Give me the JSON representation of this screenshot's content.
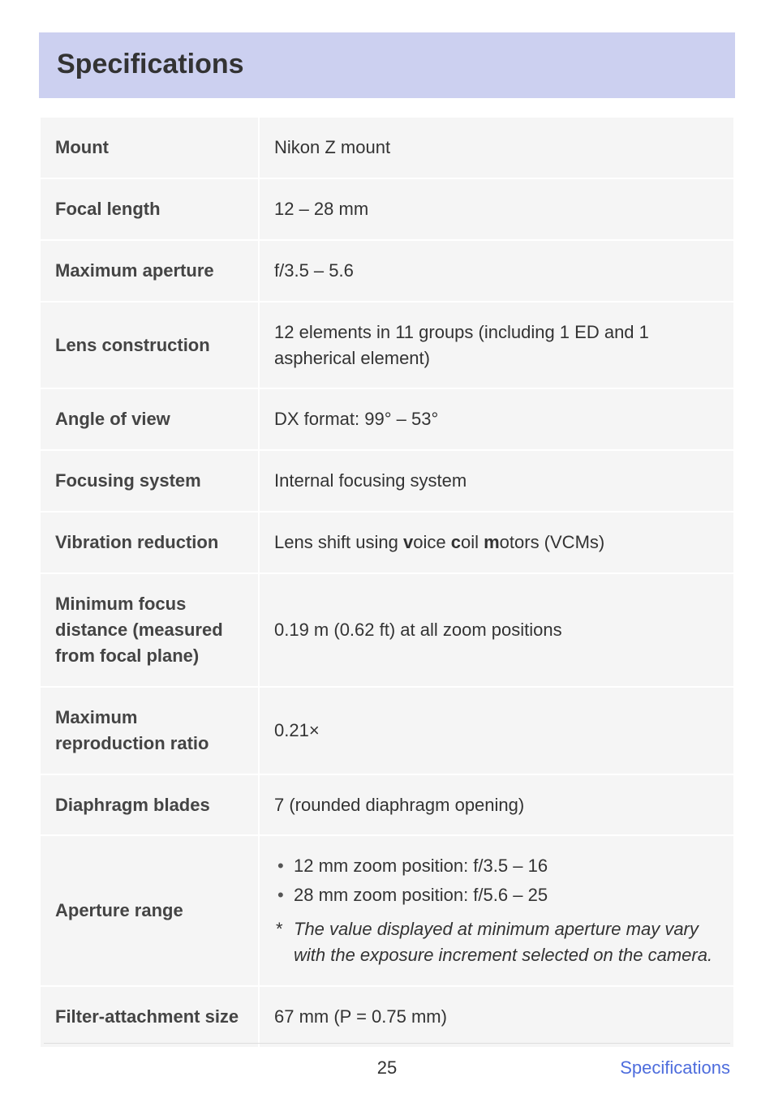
{
  "header": {
    "title": "Specifications"
  },
  "table": {
    "rows": [
      {
        "label": "Mount",
        "value": "Nikon Z mount"
      },
      {
        "label": "Focal length",
        "value": "12 – 28 mm"
      },
      {
        "label": "Maximum aperture",
        "value": "f/3.5 – 5.6"
      },
      {
        "label": "Lens construction",
        "value": "12 elements in 11 groups (including 1 ED and 1 aspherical element)"
      },
      {
        "label": "Angle of view",
        "value": "DX format: 99° – 53°"
      },
      {
        "label": "Focusing system",
        "value": "Internal focusing system"
      },
      {
        "label": "Vibration reduction",
        "value_html": true,
        "prefix": "Lens shift using ",
        "b1": "v",
        "m1": "oice ",
        "b2": "c",
        "m2": "oil ",
        "b3": "m",
        "m3": "otors (VCMs)"
      },
      {
        "label": "Minimum focus distance (measured from focal plane)",
        "value": "0.19 m (0.62 ft) at all zoom positions"
      },
      {
        "label": "Maximum reproduction ratio",
        "value": "0.21×"
      },
      {
        "label": "Diaphragm blades",
        "value": "7 (rounded diaphragm opening)"
      },
      {
        "label": "Aperture range",
        "complex": true,
        "bullets": [
          "12 mm zoom position: f/3.5 – 16",
          "28 mm zoom position: f/5.6 – 25"
        ],
        "footnote": "The value displayed at minimum aperture may vary with the exposure increment selected on the camera."
      },
      {
        "label": "Filter-attachment size",
        "value": "67 mm (P = 0.75 mm)"
      }
    ]
  },
  "footer": {
    "page_number": "25",
    "section": "Specifications"
  },
  "colors": {
    "header_band_bg": "#ccd0f0",
    "cell_bg": "#f5f5f5",
    "text": "#333333",
    "link": "#4e6ddd",
    "rule": "#dddddd"
  }
}
